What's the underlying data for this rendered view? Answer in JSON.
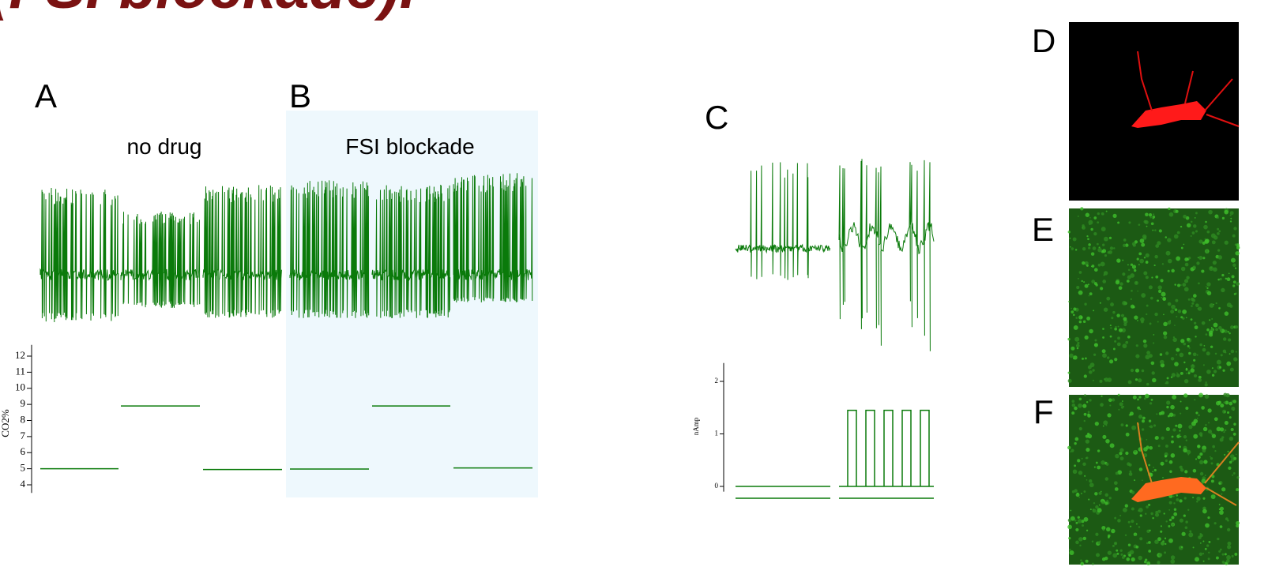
{
  "title": "(FSI blockade).",
  "panel_labels": [
    "A",
    "B",
    "C",
    "D",
    "E",
    "F"
  ],
  "conditions": [
    "no drug",
    "FSI blockade"
  ],
  "co2_plot": {
    "ylabel": "CO2%",
    "ylim": [
      3.5,
      12.7
    ],
    "yticks": [
      4,
      5,
      6,
      7,
      8,
      9,
      10,
      11,
      12
    ],
    "levels": [
      5,
      8.9,
      4.95,
      4.98,
      8.9,
      5.05
    ]
  },
  "current_plot": {
    "ylabel": "nAmp",
    "ylim": [
      -0.1,
      2.35
    ],
    "yticks": [
      0,
      1,
      2
    ],
    "levels": [
      0,
      1.45
    ]
  }
}
